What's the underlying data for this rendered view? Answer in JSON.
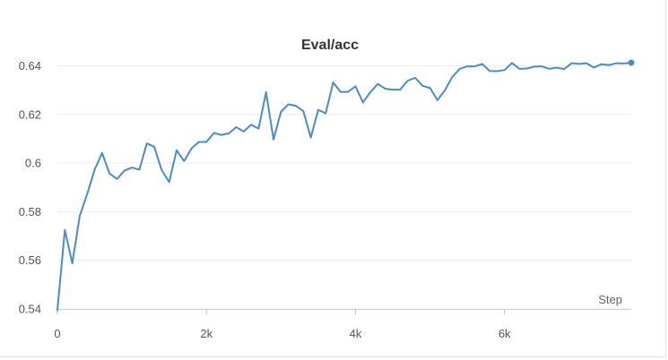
{
  "chart_data": {
    "type": "line",
    "title": "Eval/acc",
    "xlabel": "Step",
    "ylabel": "",
    "xlim": [
      0,
      7700
    ],
    "ylim": [
      0.54,
      0.645
    ],
    "y_ticks": [
      {
        "value": 0.54,
        "label": "0.54"
      },
      {
        "value": 0.56,
        "label": "0.56"
      },
      {
        "value": 0.58,
        "label": "0.58"
      },
      {
        "value": 0.6,
        "label": "0.6"
      },
      {
        "value": 0.62,
        "label": "0.62"
      },
      {
        "value": 0.64,
        "label": "0.64"
      }
    ],
    "x_ticks": [
      {
        "value": 0,
        "label": "0"
      },
      {
        "value": 2000,
        "label": "2k"
      },
      {
        "value": 4000,
        "label": "4k"
      },
      {
        "value": 6000,
        "label": "6k"
      }
    ],
    "grid": true,
    "line_color": "#4a8bd0",
    "series": [
      {
        "x": [
          0,
          100,
          200,
          300,
          400,
          500,
          600,
          700,
          800,
          900,
          1000,
          1100,
          1200,
          1300,
          1400,
          1500,
          1600,
          1700,
          1800,
          1900,
          2000,
          2100,
          2200,
          2300,
          2400,
          2500,
          2600,
          2700,
          2800,
          2900,
          3000,
          3100,
          3200,
          3300,
          3400,
          3500,
          3600,
          3700,
          3800,
          3900,
          4000,
          4100,
          4200,
          4300,
          4400,
          4500,
          4600,
          4700,
          4800,
          4900,
          5000,
          5100,
          5200,
          5300,
          5400,
          5500,
          5600,
          5700,
          5800,
          5900,
          6000,
          6100,
          6200,
          6300,
          6400,
          6500,
          6600,
          6700,
          6800,
          6900,
          7000,
          7100,
          7200,
          7300,
          7400,
          7500,
          7600,
          7700
        ],
        "y": [
          0.5395,
          0.5725,
          0.5588,
          0.5783,
          0.5873,
          0.5973,
          0.6042,
          0.5957,
          0.5935,
          0.5969,
          0.5982,
          0.5973,
          0.6081,
          0.6067,
          0.5971,
          0.5922,
          0.6053,
          0.6008,
          0.6061,
          0.6087,
          0.6087,
          0.6124,
          0.6116,
          0.6122,
          0.6148,
          0.613,
          0.6158,
          0.6142,
          0.6292,
          0.6097,
          0.6211,
          0.6242,
          0.6236,
          0.6214,
          0.6105,
          0.6219,
          0.6205,
          0.6332,
          0.6293,
          0.6293,
          0.6316,
          0.625,
          0.6292,
          0.6326,
          0.6306,
          0.6302,
          0.6302,
          0.6339,
          0.6351,
          0.6318,
          0.6309,
          0.6259,
          0.63,
          0.6355,
          0.6388,
          0.6398,
          0.6398,
          0.6408,
          0.6379,
          0.6378,
          0.6383,
          0.6412,
          0.6388,
          0.6389,
          0.6397,
          0.6398,
          0.6388,
          0.6393,
          0.6387,
          0.6411,
          0.6408,
          0.6411,
          0.6393,
          0.6407,
          0.6403,
          0.6411,
          0.641,
          0.6413
        ]
      }
    ]
  }
}
